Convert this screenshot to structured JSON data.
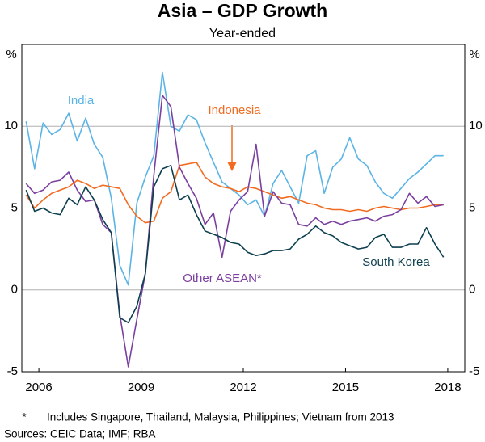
{
  "chart_data": {
    "type": "line",
    "title": "Asia – GDP Growth",
    "subtitle": "Year-ended",
    "y_unit": "%",
    "y2_unit": "%",
    "footnote_marker": "*",
    "footnote": "Includes Singapore, Thailand, Malaysia, Philippines; Vietnam from 2013",
    "sources": "Sources: CEIC Data; IMF; RBA",
    "x": [
      2006.125,
      2006.375,
      2006.625,
      2006.875,
      2007.125,
      2007.375,
      2007.625,
      2007.875,
      2008.125,
      2008.375,
      2008.625,
      2008.875,
      2009.125,
      2009.375,
      2009.625,
      2009.875,
      2010.125,
      2010.375,
      2010.625,
      2010.875,
      2011.125,
      2011.375,
      2011.625,
      2011.875,
      2012.125,
      2012.375,
      2012.625,
      2012.875,
      2013.125,
      2013.375,
      2013.625,
      2013.875,
      2014.125,
      2014.375,
      2014.625,
      2014.875,
      2015.125,
      2015.375,
      2015.625,
      2015.875,
      2016.125,
      2016.375,
      2016.625,
      2016.875,
      2017.125,
      2017.375,
      2017.625,
      2017.875,
      2018.125,
      2018.375
    ],
    "xlim": [
      2006,
      2019
    ],
    "xticks": [
      {
        "value": 2006.5,
        "label": "2006"
      },
      {
        "value": 2009.5,
        "label": "2009"
      },
      {
        "value": 2012.5,
        "label": "2012"
      },
      {
        "value": 2015.5,
        "label": "2015"
      },
      {
        "value": 2018.5,
        "label": "2018"
      }
    ],
    "ylim": [
      -5,
      15
    ],
    "yticks": [
      -5,
      0,
      5,
      10
    ],
    "y2lim": [
      -5,
      15
    ],
    "y2ticks": [
      -5,
      0,
      5,
      10
    ],
    "grid": true,
    "series": [
      {
        "name": "India",
        "color": "#5bb4e5",
        "values": [
          10.3,
          7.4,
          10.2,
          9.5,
          9.8,
          10.8,
          9.1,
          10.5,
          8.9,
          8.1,
          5.6,
          1.5,
          0.3,
          5.3,
          6.9,
          8.2,
          13.3,
          10.0,
          9.7,
          10.7,
          10.4,
          9.0,
          7.8,
          6.6,
          6.2,
          5.8,
          5.2,
          5.5,
          4.5,
          6.5,
          7.3,
          6.3,
          5.3,
          8.2,
          8.5,
          5.9,
          7.5,
          8.0,
          9.3,
          8.0,
          7.6,
          6.6,
          5.9,
          5.6,
          6.2,
          6.8,
          7.2,
          7.7,
          8.2,
          8.2
        ]
      },
      {
        "name": "Indonesia",
        "color": "#f26b21",
        "values": [
          5.8,
          5.0,
          5.5,
          5.9,
          6.1,
          6.3,
          6.7,
          6.5,
          6.2,
          6.4,
          6.3,
          6.2,
          5.2,
          4.5,
          4.1,
          4.2,
          5.6,
          6.0,
          7.6,
          7.7,
          7.8,
          6.9,
          6.5,
          6.3,
          6.2,
          6.0,
          6.3,
          6.2,
          6.0,
          5.8,
          5.6,
          5.7,
          5.5,
          5.3,
          5.2,
          5.0,
          4.9,
          4.9,
          4.8,
          4.9,
          4.8,
          5.0,
          5.1,
          5.0,
          4.9,
          5.0,
          5.0,
          5.1,
          5.2,
          5.2
        ]
      },
      {
        "name": "Other ASEAN*",
        "color": "#7b3fa0",
        "values": [
          6.5,
          5.9,
          6.1,
          6.6,
          6.7,
          7.2,
          6.1,
          5.4,
          5.5,
          4.0,
          3.5,
          -1.5,
          -4.7,
          -1.8,
          1.0,
          7.0,
          11.9,
          11.2,
          7.5,
          6.5,
          5.6,
          4.0,
          4.7,
          2.0,
          4.8,
          5.5,
          6.0,
          8.9,
          4.5,
          6.0,
          5.3,
          5.2,
          4.0,
          3.9,
          4.4,
          4.0,
          4.2,
          4.0,
          4.2,
          4.3,
          4.4,
          4.2,
          4.5,
          4.6,
          4.9,
          5.9,
          5.3,
          5.7,
          5.1,
          5.2
        ]
      },
      {
        "name": "South Korea",
        "color": "#0d3f4f",
        "values": [
          6.1,
          4.8,
          5.0,
          4.7,
          4.6,
          5.6,
          5.2,
          6.3,
          5.5,
          4.3,
          3.5,
          -1.7,
          -2.0,
          -1.0,
          1.0,
          6.3,
          7.4,
          7.6,
          5.5,
          5.8,
          4.6,
          3.6,
          3.4,
          3.2,
          2.9,
          2.8,
          2.3,
          2.1,
          2.2,
          2.4,
          2.4,
          2.5,
          3.1,
          3.4,
          3.9,
          3.5,
          3.3,
          2.9,
          2.7,
          2.5,
          2.6,
          3.2,
          3.4,
          2.6,
          2.6,
          2.8,
          2.8,
          3.8,
          2.8,
          2.0
        ]
      }
    ]
  }
}
